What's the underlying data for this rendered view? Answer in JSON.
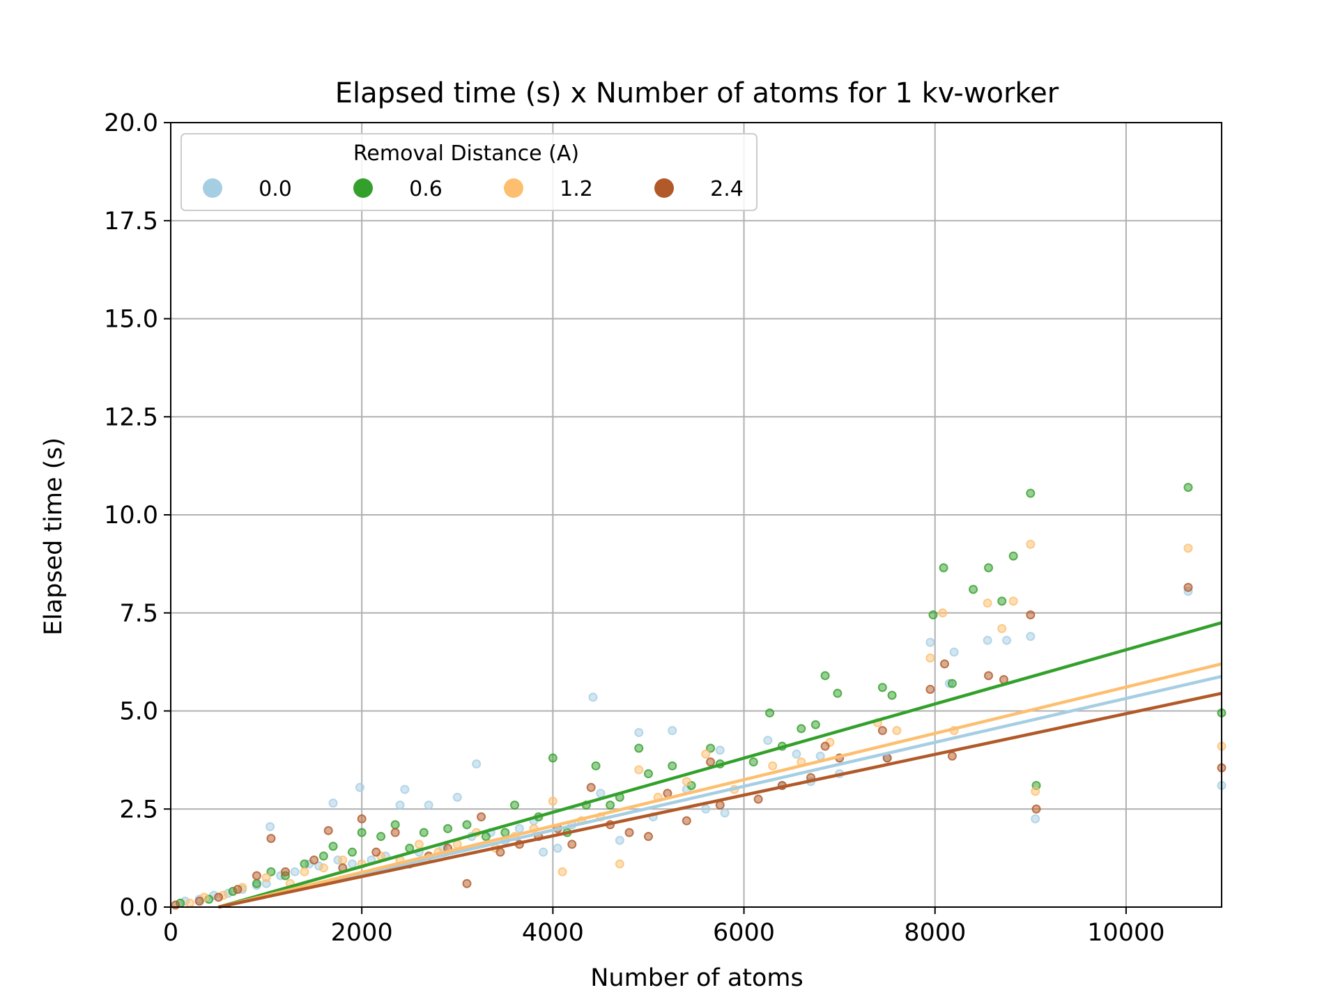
{
  "chart_data": {
    "type": "scatter",
    "title": "Elapsed time (s) x Number of atoms for 1 kv-worker",
    "xlabel": "Number of atoms",
    "ylabel": "Elapsed time (s)",
    "xlim": [
      0,
      11000
    ],
    "ylim": [
      0,
      20
    ],
    "x_ticks": [
      "0",
      "2000",
      "4000",
      "6000",
      "8000",
      "10000"
    ],
    "y_ticks": [
      "0.0",
      "2.5",
      "5.0",
      "7.5",
      "10.0",
      "12.5",
      "15.0",
      "17.5",
      "20.0"
    ],
    "grid": true,
    "legend": {
      "title": "Removal Distance (A)",
      "position": "top-left"
    },
    "series": [
      {
        "name": "0.0",
        "color": "#a6cee3",
        "fit": {
          "x": [
            500,
            11000
          ],
          "y": [
            0.0,
            5.88
          ]
        },
        "points": [
          [
            150,
            0.15
          ],
          [
            300,
            0.2
          ],
          [
            450,
            0.3
          ],
          [
            600,
            0.35
          ],
          [
            750,
            0.45
          ],
          [
            900,
            0.55
          ],
          [
            1000,
            0.6
          ],
          [
            1040,
            2.05
          ],
          [
            1150,
            0.8
          ],
          [
            1300,
            0.9
          ],
          [
            1450,
            1.1
          ],
          [
            1550,
            1.05
          ],
          [
            1700,
            2.65
          ],
          [
            1750,
            1.2
          ],
          [
            1900,
            1.1
          ],
          [
            1980,
            3.05
          ],
          [
            2100,
            1.2
          ],
          [
            2250,
            1.3
          ],
          [
            2400,
            2.6
          ],
          [
            2450,
            3.0
          ],
          [
            2600,
            1.4
          ],
          [
            2700,
            2.6
          ],
          [
            2850,
            1.5
          ],
          [
            3000,
            2.8
          ],
          [
            3150,
            1.8
          ],
          [
            3200,
            3.65
          ],
          [
            3350,
            1.9
          ],
          [
            3500,
            1.7
          ],
          [
            3650,
            2.0
          ],
          [
            3800,
            2.2
          ],
          [
            3900,
            1.4
          ],
          [
            4050,
            1.5
          ],
          [
            4200,
            2.1
          ],
          [
            4420,
            5.35
          ],
          [
            4500,
            2.9
          ],
          [
            4700,
            1.7
          ],
          [
            4900,
            4.45
          ],
          [
            5050,
            2.3
          ],
          [
            5250,
            4.5
          ],
          [
            5400,
            3.0
          ],
          [
            5600,
            2.5
          ],
          [
            5750,
            4.0
          ],
          [
            5800,
            2.4
          ],
          [
            6250,
            4.25
          ],
          [
            6400,
            3.1
          ],
          [
            6550,
            3.9
          ],
          [
            6700,
            3.2
          ],
          [
            6800,
            3.85
          ],
          [
            7000,
            3.4
          ],
          [
            7500,
            3.8
          ],
          [
            7950,
            6.75
          ],
          [
            8150,
            5.7
          ],
          [
            8200,
            6.5
          ],
          [
            8550,
            6.8
          ],
          [
            8750,
            6.8
          ],
          [
            9000,
            6.9
          ],
          [
            9050,
            2.25
          ],
          [
            10650,
            8.05
          ],
          [
            11000,
            3.1
          ]
        ]
      },
      {
        "name": "0.6",
        "color": "#33a02c",
        "fit": {
          "x": [
            500,
            11000
          ],
          "y": [
            0.0,
            7.25
          ]
        },
        "points": [
          [
            100,
            0.1
          ],
          [
            400,
            0.2
          ],
          [
            650,
            0.4
          ],
          [
            900,
            0.6
          ],
          [
            1050,
            0.9
          ],
          [
            1200,
            0.8
          ],
          [
            1400,
            1.1
          ],
          [
            1600,
            1.3
          ],
          [
            1700,
            1.55
          ],
          [
            1900,
            1.4
          ],
          [
            2000,
            1.9
          ],
          [
            2200,
            1.8
          ],
          [
            2350,
            2.1
          ],
          [
            2500,
            1.5
          ],
          [
            2650,
            1.9
          ],
          [
            2900,
            2.0
          ],
          [
            3100,
            2.1
          ],
          [
            3300,
            1.8
          ],
          [
            3500,
            1.9
          ],
          [
            3600,
            2.6
          ],
          [
            3850,
            2.3
          ],
          [
            4000,
            3.8
          ],
          [
            4150,
            1.9
          ],
          [
            4350,
            2.6
          ],
          [
            4450,
            3.6
          ],
          [
            4600,
            2.6
          ],
          [
            4700,
            2.8
          ],
          [
            4900,
            4.05
          ],
          [
            5000,
            3.4
          ],
          [
            5250,
            3.6
          ],
          [
            5450,
            3.1
          ],
          [
            5650,
            4.05
          ],
          [
            5750,
            3.65
          ],
          [
            6100,
            3.7
          ],
          [
            6270,
            4.95
          ],
          [
            6400,
            4.1
          ],
          [
            6600,
            4.55
          ],
          [
            6750,
            4.65
          ],
          [
            6850,
            5.9
          ],
          [
            6980,
            5.45
          ],
          [
            7450,
            5.6
          ],
          [
            7550,
            5.4
          ],
          [
            7980,
            7.45
          ],
          [
            8090,
            8.65
          ],
          [
            8180,
            5.7
          ],
          [
            8400,
            8.1
          ],
          [
            8560,
            8.65
          ],
          [
            8700,
            7.8
          ],
          [
            8820,
            8.95
          ],
          [
            9000,
            10.55
          ],
          [
            9060,
            3.1
          ],
          [
            10650,
            10.7
          ],
          [
            11000,
            4.95
          ]
        ]
      },
      {
        "name": "1.2",
        "color": "#fdbf6f",
        "fit": {
          "x": [
            500,
            11000
          ],
          "y": [
            0.0,
            6.2
          ]
        },
        "points": [
          [
            200,
            0.1
          ],
          [
            350,
            0.25
          ],
          [
            550,
            0.3
          ],
          [
            750,
            0.5
          ],
          [
            1000,
            0.75
          ],
          [
            1250,
            0.6
          ],
          [
            1400,
            0.9
          ],
          [
            1600,
            1.0
          ],
          [
            1800,
            1.2
          ],
          [
            2000,
            1.1
          ],
          [
            2200,
            1.3
          ],
          [
            2400,
            1.2
          ],
          [
            2600,
            1.6
          ],
          [
            2800,
            1.4
          ],
          [
            3000,
            1.6
          ],
          [
            3200,
            1.9
          ],
          [
            3400,
            1.5
          ],
          [
            3600,
            1.8
          ],
          [
            3800,
            2.0
          ],
          [
            4000,
            2.7
          ],
          [
            4100,
            0.9
          ],
          [
            4300,
            2.2
          ],
          [
            4500,
            2.3
          ],
          [
            4700,
            1.1
          ],
          [
            4900,
            3.5
          ],
          [
            5100,
            2.8
          ],
          [
            5400,
            3.2
          ],
          [
            5600,
            3.9
          ],
          [
            5900,
            3.0
          ],
          [
            6300,
            3.6
          ],
          [
            6600,
            3.7
          ],
          [
            6900,
            4.2
          ],
          [
            7400,
            4.7
          ],
          [
            7600,
            4.5
          ],
          [
            7950,
            6.35
          ],
          [
            8080,
            7.5
          ],
          [
            8200,
            4.5
          ],
          [
            8550,
            7.75
          ],
          [
            8700,
            7.1
          ],
          [
            8820,
            7.8
          ],
          [
            9000,
            9.25
          ],
          [
            9050,
            2.95
          ],
          [
            10650,
            9.15
          ],
          [
            11000,
            4.1
          ]
        ]
      },
      {
        "name": "2.4",
        "color": "#b15928",
        "fit": {
          "x": [
            500,
            11000
          ],
          "y": [
            0.0,
            5.45
          ]
        },
        "points": [
          [
            50,
            0.05
          ],
          [
            300,
            0.15
          ],
          [
            500,
            0.25
          ],
          [
            700,
            0.45
          ],
          [
            900,
            0.8
          ],
          [
            1050,
            1.75
          ],
          [
            1200,
            0.9
          ],
          [
            1500,
            1.2
          ],
          [
            1650,
            1.95
          ],
          [
            1800,
            1.0
          ],
          [
            2000,
            2.25
          ],
          [
            2150,
            1.4
          ],
          [
            2350,
            1.9
          ],
          [
            2500,
            1.1
          ],
          [
            2700,
            1.3
          ],
          [
            2900,
            1.5
          ],
          [
            3100,
            0.6
          ],
          [
            3250,
            2.3
          ],
          [
            3450,
            1.4
          ],
          [
            3650,
            1.6
          ],
          [
            3850,
            1.8
          ],
          [
            4050,
            2.0
          ],
          [
            4200,
            1.6
          ],
          [
            4400,
            3.05
          ],
          [
            4600,
            2.1
          ],
          [
            4800,
            1.9
          ],
          [
            5000,
            1.8
          ],
          [
            5200,
            2.9
          ],
          [
            5400,
            2.2
          ],
          [
            5650,
            3.7
          ],
          [
            5750,
            2.6
          ],
          [
            6150,
            2.75
          ],
          [
            6400,
            3.1
          ],
          [
            6700,
            3.3
          ],
          [
            6850,
            4.1
          ],
          [
            7000,
            3.8
          ],
          [
            7450,
            4.5
          ],
          [
            7500,
            3.8
          ],
          [
            7950,
            5.55
          ],
          [
            8100,
            6.2
          ],
          [
            8180,
            3.85
          ],
          [
            8560,
            5.9
          ],
          [
            8720,
            5.8
          ],
          [
            9000,
            7.45
          ],
          [
            9060,
            2.5
          ],
          [
            10650,
            8.15
          ],
          [
            11000,
            3.55
          ]
        ]
      }
    ]
  }
}
